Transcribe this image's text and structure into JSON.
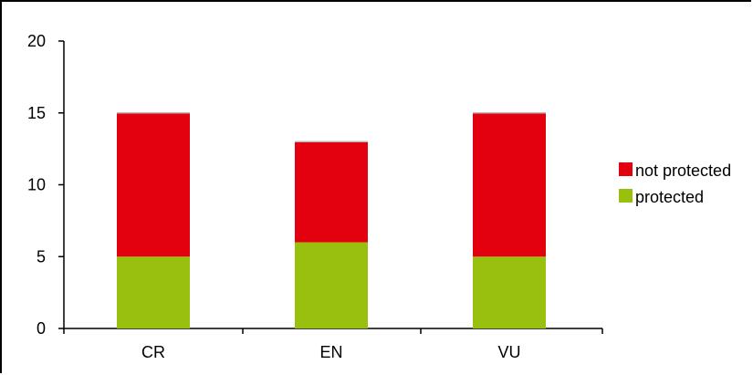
{
  "chart_data": {
    "type": "bar",
    "stacked": true,
    "categories": [
      "CR",
      "EN",
      "VU"
    ],
    "series": [
      {
        "name": "protected",
        "values": [
          5,
          6,
          5
        ],
        "color": "#99c00f"
      },
      {
        "name": "not protected",
        "values": [
          10,
          7,
          10
        ],
        "color": "#e3000f"
      }
    ],
    "ylim": [
      0,
      20
    ],
    "yticks": [
      "0",
      "5",
      "10",
      "15",
      "20"
    ],
    "xlabel": "",
    "ylabel": "",
    "title": "",
    "grid": false,
    "legend": {
      "position": "right",
      "entries": [
        "not protected",
        "protected"
      ]
    }
  }
}
